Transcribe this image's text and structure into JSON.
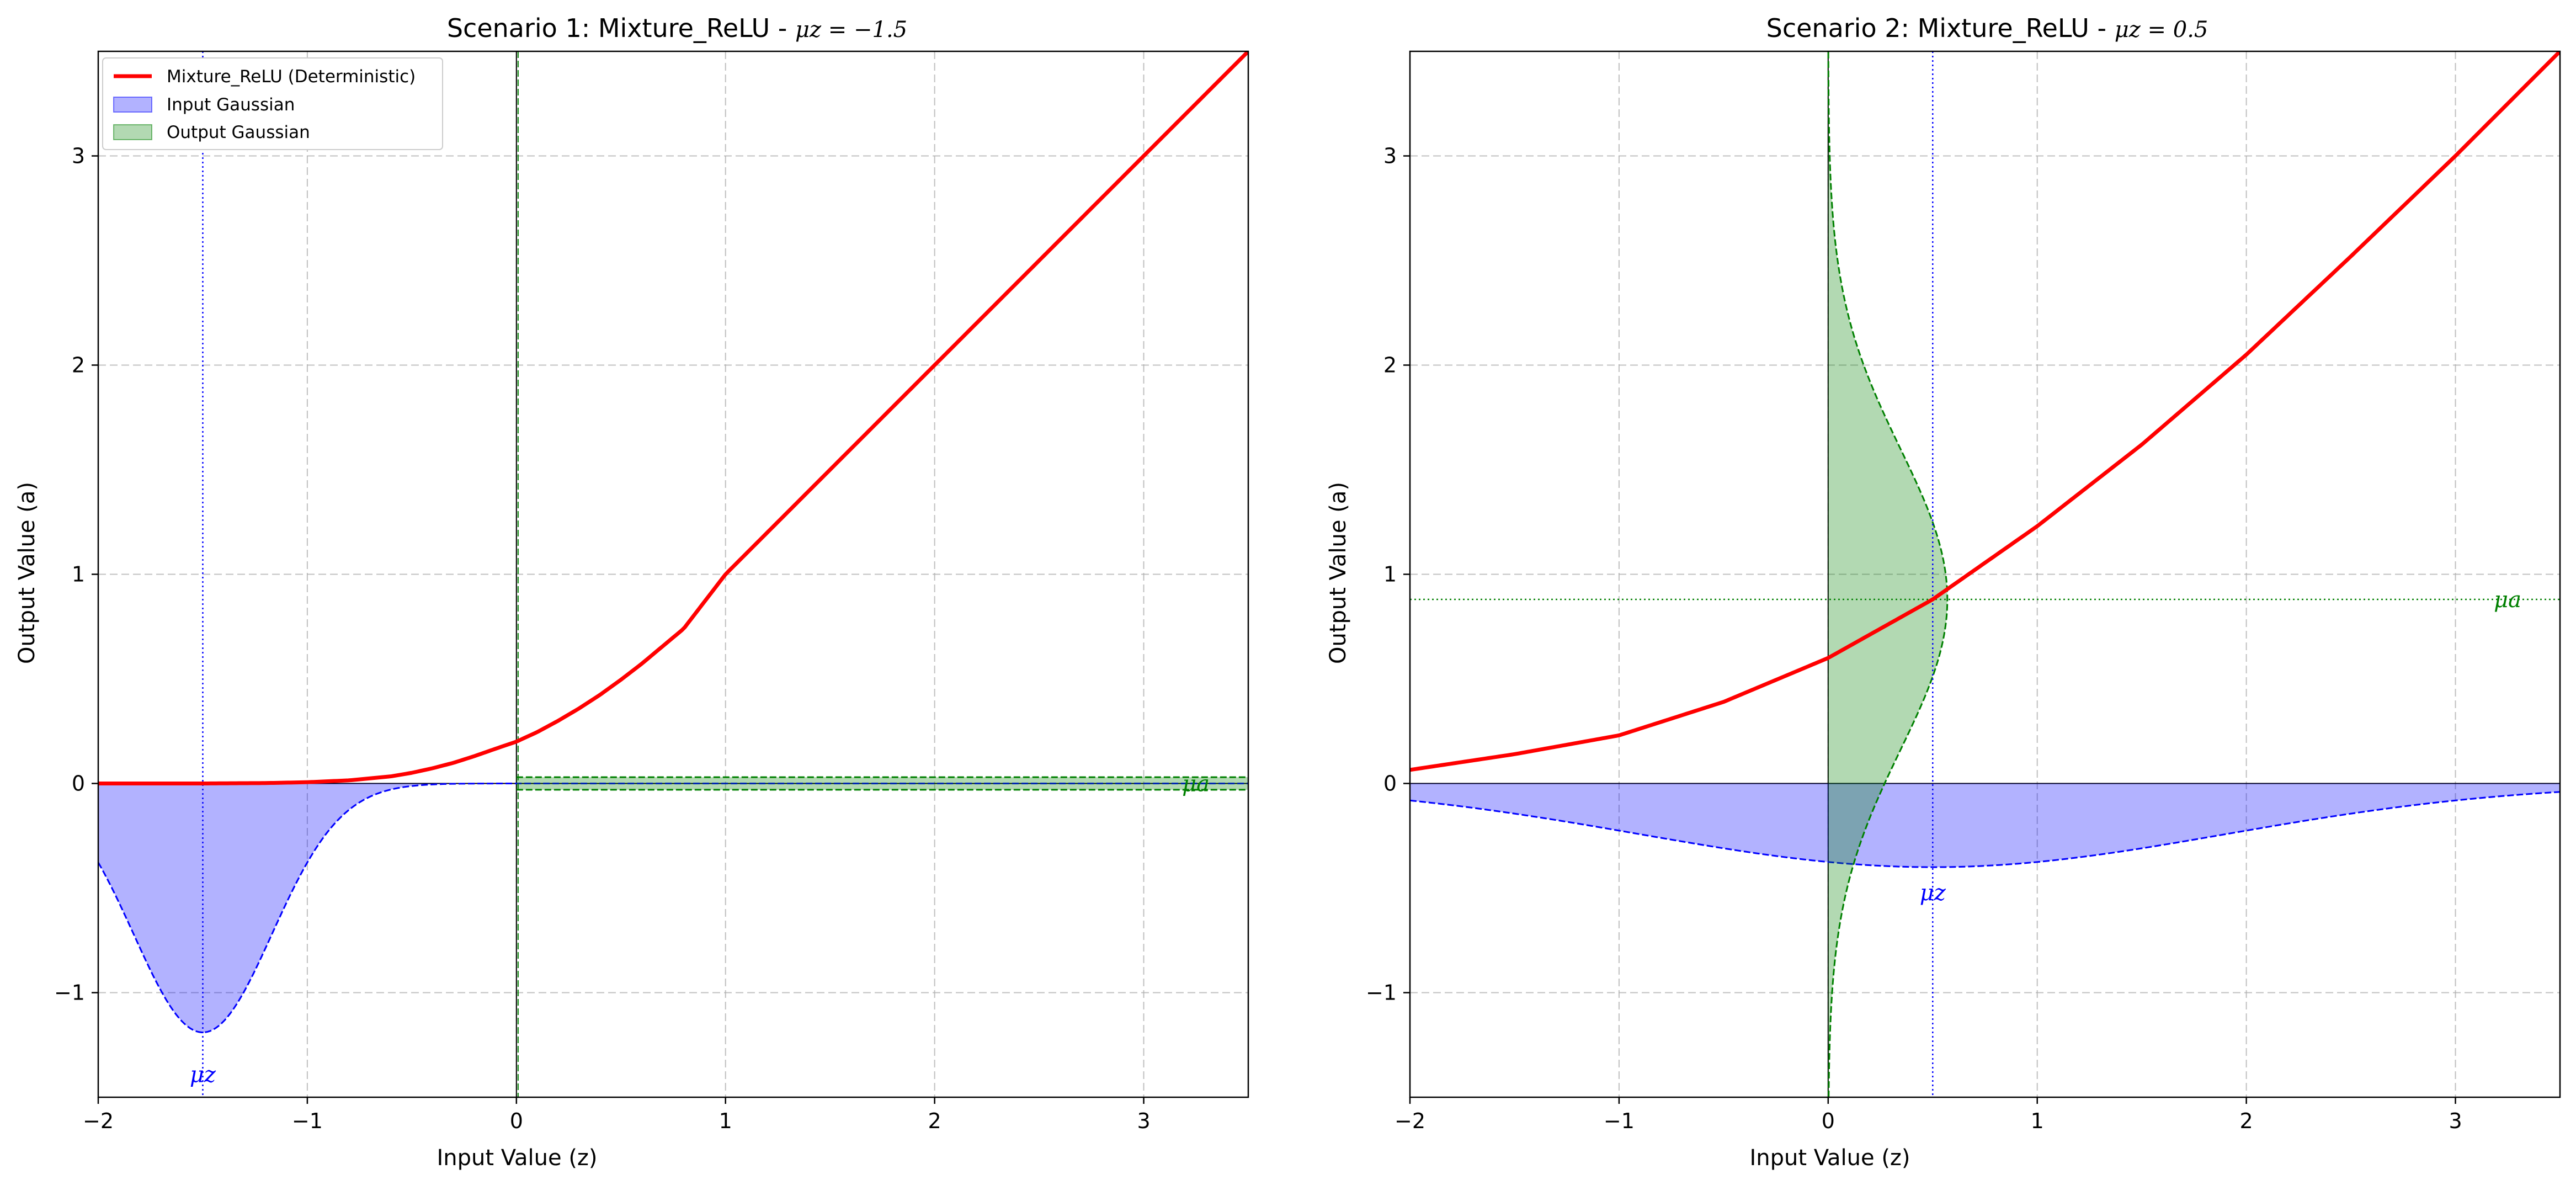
{
  "chart_data": [
    {
      "type": "line",
      "title_prefix": "Scenario 1: Mixture_ReLU - ",
      "title_math": "μz = −1.5",
      "xlabel": "Input Value (z)",
      "ylabel": "Output Value (a)",
      "xlim": [
        -2,
        3.5
      ],
      "ylim": [
        -1.5,
        3.5
      ],
      "xticks": [
        -2,
        -1,
        0,
        1,
        2,
        3
      ],
      "xtick_labels": [
        "−2",
        "−1",
        "0",
        "1",
        "2",
        "3"
      ],
      "yticks": [
        -1,
        0,
        1,
        2,
        3
      ],
      "ytick_labels": [
        "−1",
        "0",
        "1",
        "2",
        "3"
      ],
      "grid": true,
      "legend": {
        "placement": "top-left",
        "entries": [
          "Mixture_ReLU (Deterministic)",
          "Input Gaussian",
          "Output Gaussian"
        ]
      },
      "input_mu": -1.5,
      "input_sigma": 0.33,
      "input_peak": -1.19,
      "output_mu": 0.0,
      "output_sigma": 0.03,
      "output_peak_x": 3.6,
      "output_band_half": 0.03,
      "relu_curve": {
        "z": [
          -2.0,
          -1.5,
          -1.2,
          -1.0,
          -0.8,
          -0.6,
          -0.5,
          -0.4,
          -0.3,
          -0.2,
          -0.1,
          0.0,
          0.1,
          0.2,
          0.3,
          0.4,
          0.5,
          0.6,
          0.8,
          1.0,
          1.5,
          2.0,
          2.5,
          3.0,
          3.5
        ],
        "a": [
          0.0,
          0.0,
          0.002,
          0.006,
          0.015,
          0.034,
          0.051,
          0.073,
          0.099,
          0.131,
          0.166,
          0.2,
          0.246,
          0.3,
          0.359,
          0.424,
          0.496,
          0.573,
          0.74,
          1.0,
          1.5,
          2.0,
          2.5,
          3.0,
          3.5
        ]
      },
      "mu_z_label": "μz",
      "mu_a_label": "μa",
      "colors": {
        "relu": "#ff0000",
        "input": "#0000ff",
        "output": "#008000"
      }
    },
    {
      "type": "line",
      "title_prefix": "Scenario 2: Mixture_ReLU - ",
      "title_math": "μz = 0.5",
      "xlabel": "Input Value (z)",
      "ylabel": "Output Value (a)",
      "xlim": [
        -2,
        3.5
      ],
      "ylim": [
        -1.5,
        3.5
      ],
      "xticks": [
        -2,
        -1,
        0,
        1,
        2,
        3
      ],
      "xtick_labels": [
        "−2",
        "−1",
        "0",
        "1",
        "2",
        "3"
      ],
      "yticks": [
        -1,
        0,
        1,
        2,
        3
      ],
      "ytick_labels": [
        "−1",
        "0",
        "1",
        "2",
        "3"
      ],
      "grid": true,
      "input_mu": 0.5,
      "input_sigma": 1.4,
      "input_peak": -0.4,
      "output_mu": 0.88,
      "output_sigma": 0.72,
      "output_peak_x": 0.57,
      "relu_curve": {
        "z": [
          -2.0,
          -1.5,
          -1.0,
          -0.5,
          0.0,
          0.5,
          1.0,
          1.5,
          2.0,
          2.5,
          3.0,
          3.5
        ],
        "a": [
          0.065,
          0.14,
          0.23,
          0.39,
          0.6,
          0.88,
          1.23,
          1.62,
          2.05,
          2.52,
          3.0,
          3.5
        ]
      },
      "mu_z_label": "μz",
      "mu_a_label": "μa",
      "colors": {
        "relu": "#ff0000",
        "input": "#0000ff",
        "output": "#008000"
      }
    }
  ]
}
